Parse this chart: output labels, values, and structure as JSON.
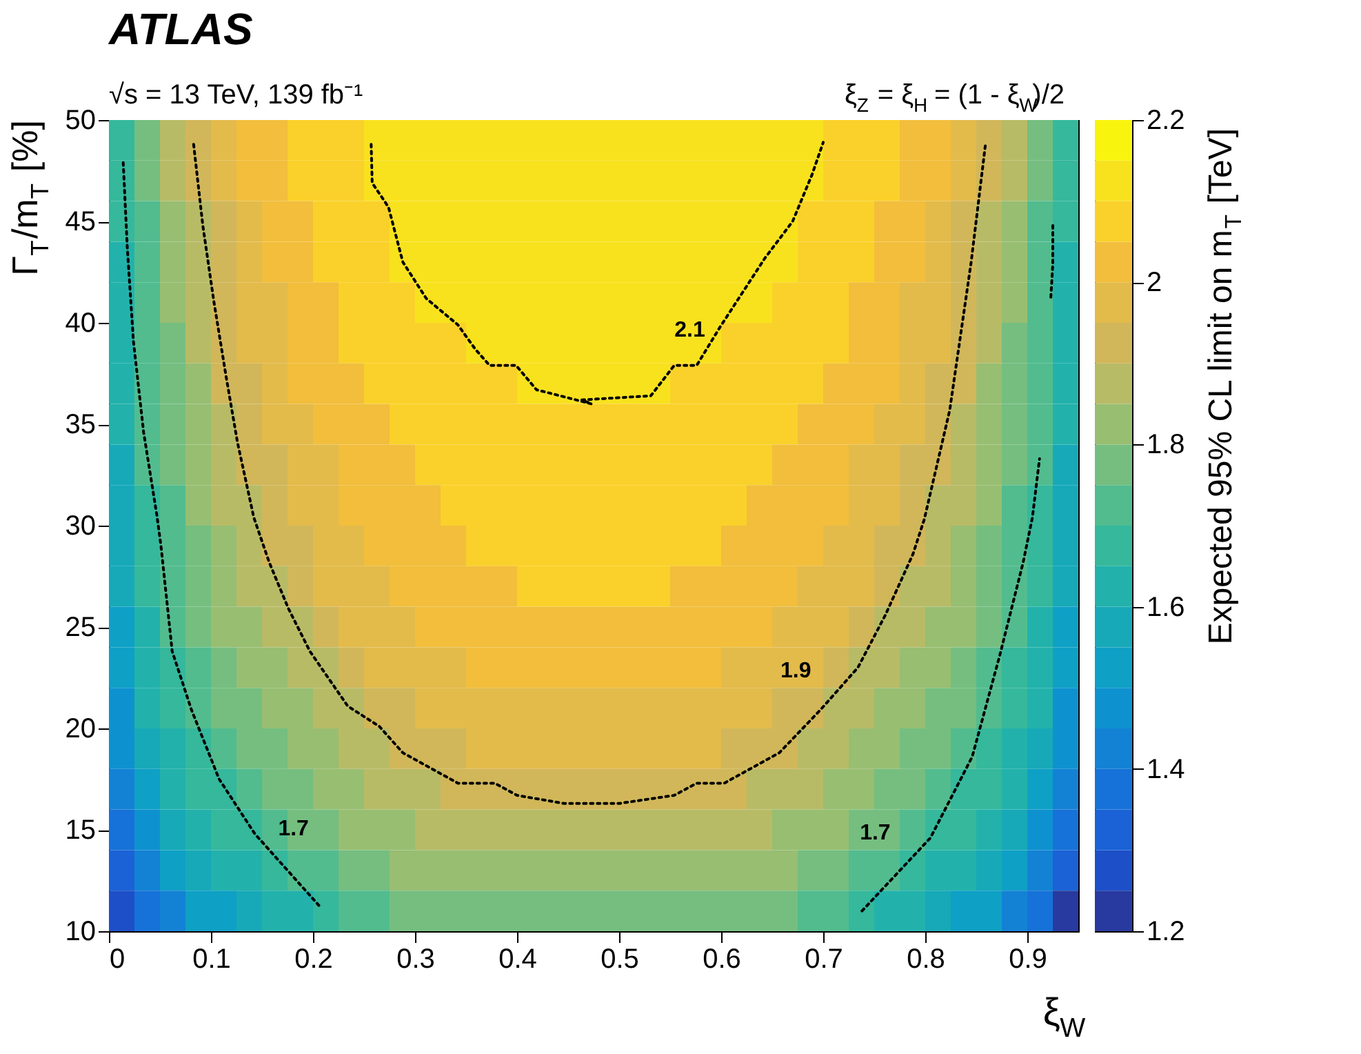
{
  "chart_data": {
    "type": "heatmap",
    "title": "ATLAS",
    "subtitle": "√s = 13 TeV, 139 fb⁻¹",
    "xlabel": "ξ$_{W}$",
    "ylabel": "Γ$_{T}$/m$_{T}$ [%]",
    "clabel": "Expected 95% CL limit on m$_{T}$ [TeV]",
    "annotations": [
      "ξ$_{Z}$ = ξ$_{H}$ = (1 - ξ$_{W}$)/2"
    ],
    "xlim": [
      0,
      0.95
    ],
    "ylim": [
      10,
      50
    ],
    "xticks": [
      0,
      0.1,
      0.2,
      0.3,
      0.4,
      0.5,
      0.6,
      0.7,
      0.8,
      0.9
    ],
    "yticks": [
      10,
      15,
      20,
      25,
      30,
      35,
      40,
      45,
      50
    ],
    "clim": [
      1.2,
      2.2
    ],
    "cticks": [
      1.2,
      1.4,
      1.6,
      1.8,
      2,
      2.2
    ],
    "colors": [
      "#283a9f",
      "#1d4fc8",
      "#1a62d6",
      "#1672d8",
      "#1382d4",
      "#0e92cf",
      "#0fa0c6",
      "#17a9b8",
      "#22b2ab",
      "#35b89c",
      "#52bc8f",
      "#75be80",
      "#98be72",
      "#b8bb66",
      "#d1b75a",
      "#e3bb4b",
      "#f2be3c",
      "#fad12a",
      "#f8e21e",
      "#f9f40e"
    ],
    "x": [
      0.0125,
      0.0375,
      0.0625,
      0.0875,
      0.1125,
      0.1375,
      0.1625,
      0.1875,
      0.2125,
      0.2375,
      0.2625,
      0.2875,
      0.3125,
      0.3375,
      0.3625,
      0.3875,
      0.4125,
      0.4375,
      0.4625,
      0.4875,
      0.5125,
      0.5375,
      0.5625,
      0.5875,
      0.6125,
      0.6375,
      0.6625,
      0.6875,
      0.7125,
      0.7375,
      0.7625,
      0.7875,
      0.8125,
      0.8375,
      0.8625,
      0.8875,
      0.9125,
      0.9375
    ],
    "y": [
      49,
      47,
      45,
      43,
      41,
      39,
      37,
      35,
      33,
      31,
      29,
      27,
      25,
      23,
      21,
      19,
      17,
      15,
      13,
      11
    ],
    "cells": [
      [
        1.675,
        1.775,
        1.875,
        1.925,
        1.975,
        2.025,
        2.025,
        2.075,
        2.075,
        2.075,
        2.125,
        2.125,
        2.125,
        2.125,
        2.125,
        2.125,
        2.125,
        2.125,
        2.125,
        2.125,
        2.125,
        2.125,
        2.125,
        2.125,
        2.125,
        2.125,
        2.125,
        2.125,
        2.075,
        2.075,
        2.075,
        2.025,
        2.025,
        1.975,
        1.925,
        1.875,
        1.775,
        1.675
      ],
      [
        1.675,
        1.775,
        1.875,
        1.925,
        1.975,
        2.025,
        2.025,
        2.075,
        2.075,
        2.075,
        2.125,
        2.125,
        2.125,
        2.125,
        2.125,
        2.125,
        2.125,
        2.125,
        2.125,
        2.125,
        2.125,
        2.125,
        2.125,
        2.125,
        2.125,
        2.125,
        2.125,
        2.125,
        2.075,
        2.075,
        2.075,
        2.025,
        2.025,
        1.975,
        1.925,
        1.875,
        1.775,
        1.675
      ],
      [
        1.675,
        1.725,
        1.825,
        1.875,
        1.925,
        1.975,
        2.025,
        2.025,
        2.075,
        2.075,
        2.075,
        2.125,
        2.125,
        2.125,
        2.125,
        2.125,
        2.125,
        2.125,
        2.125,
        2.125,
        2.125,
        2.125,
        2.125,
        2.125,
        2.125,
        2.125,
        2.125,
        2.075,
        2.075,
        2.075,
        2.025,
        2.025,
        1.975,
        1.925,
        1.875,
        1.825,
        1.725,
        1.675
      ],
      [
        1.625,
        1.725,
        1.825,
        1.875,
        1.925,
        1.975,
        2.025,
        2.025,
        2.075,
        2.075,
        2.075,
        2.125,
        2.125,
        2.125,
        2.125,
        2.125,
        2.125,
        2.125,
        2.125,
        2.125,
        2.125,
        2.125,
        2.125,
        2.125,
        2.125,
        2.125,
        2.125,
        2.075,
        2.075,
        2.075,
        2.025,
        2.025,
        1.975,
        1.925,
        1.875,
        1.825,
        1.725,
        1.625
      ],
      [
        1.625,
        1.725,
        1.825,
        1.875,
        1.925,
        1.975,
        1.975,
        2.025,
        2.025,
        2.075,
        2.075,
        2.075,
        2.125,
        2.125,
        2.125,
        2.125,
        2.125,
        2.125,
        2.125,
        2.125,
        2.125,
        2.125,
        2.125,
        2.125,
        2.125,
        2.125,
        2.075,
        2.075,
        2.075,
        2.025,
        2.025,
        1.975,
        1.975,
        1.925,
        1.875,
        1.825,
        1.725,
        1.625
      ],
      [
        1.625,
        1.725,
        1.775,
        1.875,
        1.925,
        1.975,
        1.975,
        2.025,
        2.025,
        2.075,
        2.075,
        2.075,
        2.075,
        2.075,
        2.125,
        2.125,
        2.125,
        2.125,
        2.125,
        2.125,
        2.125,
        2.125,
        2.125,
        2.125,
        2.075,
        2.075,
        2.075,
        2.075,
        2.075,
        2.025,
        2.025,
        1.975,
        1.975,
        1.925,
        1.875,
        1.775,
        1.725,
        1.625
      ],
      [
        1.625,
        1.725,
        1.775,
        1.825,
        1.925,
        1.925,
        1.975,
        2.025,
        2.025,
        2.025,
        2.075,
        2.075,
        2.075,
        2.075,
        2.075,
        2.075,
        2.125,
        2.125,
        2.125,
        2.125,
        2.125,
        2.125,
        2.075,
        2.075,
        2.075,
        2.075,
        2.075,
        2.075,
        2.025,
        2.025,
        2.025,
        1.975,
        1.925,
        1.925,
        1.825,
        1.775,
        1.725,
        1.625
      ],
      [
        1.625,
        1.725,
        1.775,
        1.825,
        1.875,
        1.925,
        1.975,
        1.975,
        2.025,
        2.025,
        2.025,
        2.075,
        2.075,
        2.075,
        2.075,
        2.075,
        2.075,
        2.075,
        2.075,
        2.075,
        2.075,
        2.075,
        2.075,
        2.075,
        2.075,
        2.075,
        2.075,
        2.025,
        2.025,
        2.025,
        1.975,
        1.975,
        1.925,
        1.875,
        1.825,
        1.775,
        1.725,
        1.625
      ],
      [
        1.575,
        1.725,
        1.775,
        1.825,
        1.875,
        1.925,
        1.925,
        1.975,
        1.975,
        2.025,
        2.025,
        2.025,
        2.075,
        2.075,
        2.075,
        2.075,
        2.075,
        2.075,
        2.075,
        2.075,
        2.075,
        2.075,
        2.075,
        2.075,
        2.075,
        2.075,
        2.025,
        2.025,
        2.025,
        1.975,
        1.975,
        1.925,
        1.925,
        1.875,
        1.825,
        1.775,
        1.725,
        1.575
      ],
      [
        1.575,
        1.675,
        1.725,
        1.825,
        1.875,
        1.875,
        1.925,
        1.975,
        1.975,
        2.025,
        2.025,
        2.025,
        2.025,
        2.075,
        2.075,
        2.075,
        2.075,
        2.075,
        2.075,
        2.075,
        2.075,
        2.075,
        2.075,
        2.075,
        2.075,
        2.025,
        2.025,
        2.025,
        2.025,
        1.975,
        1.975,
        1.925,
        1.875,
        1.875,
        1.825,
        1.725,
        1.675,
        1.575
      ],
      [
        1.575,
        1.675,
        1.725,
        1.775,
        1.825,
        1.875,
        1.925,
        1.925,
        1.975,
        1.975,
        2.025,
        2.025,
        2.025,
        2.025,
        2.075,
        2.075,
        2.075,
        2.075,
        2.075,
        2.075,
        2.075,
        2.075,
        2.075,
        2.075,
        2.025,
        2.025,
        2.025,
        2.025,
        1.975,
        1.975,
        1.925,
        1.925,
        1.875,
        1.825,
        1.775,
        1.725,
        1.675,
        1.575
      ],
      [
        1.575,
        1.675,
        1.725,
        1.775,
        1.825,
        1.875,
        1.875,
        1.925,
        1.975,
        1.975,
        1.975,
        2.025,
        2.025,
        2.025,
        2.025,
        2.025,
        2.075,
        2.075,
        2.075,
        2.075,
        2.075,
        2.075,
        2.025,
        2.025,
        2.025,
        2.025,
        2.025,
        1.975,
        1.975,
        1.975,
        1.925,
        1.875,
        1.875,
        1.825,
        1.775,
        1.725,
        1.675,
        1.575
      ],
      [
        1.525,
        1.625,
        1.725,
        1.775,
        1.825,
        1.825,
        1.875,
        1.875,
        1.925,
        1.975,
        1.975,
        1.975,
        2.025,
        2.025,
        2.025,
        2.025,
        2.025,
        2.025,
        2.025,
        2.025,
        2.025,
        2.025,
        2.025,
        2.025,
        2.025,
        2.025,
        1.975,
        1.975,
        1.975,
        1.925,
        1.875,
        1.875,
        1.825,
        1.825,
        1.775,
        1.725,
        1.625,
        1.525
      ],
      [
        1.525,
        1.625,
        1.675,
        1.725,
        1.775,
        1.825,
        1.825,
        1.875,
        1.875,
        1.925,
        1.975,
        1.975,
        1.975,
        1.975,
        2.025,
        2.025,
        2.025,
        2.025,
        2.025,
        2.025,
        2.025,
        2.025,
        2.025,
        2.025,
        1.975,
        1.975,
        1.975,
        1.975,
        1.925,
        1.875,
        1.875,
        1.825,
        1.825,
        1.775,
        1.725,
        1.675,
        1.625,
        1.525
      ],
      [
        1.475,
        1.625,
        1.675,
        1.725,
        1.775,
        1.775,
        1.825,
        1.825,
        1.875,
        1.875,
        1.925,
        1.925,
        1.975,
        1.975,
        1.975,
        1.975,
        1.975,
        1.975,
        1.975,
        1.975,
        1.975,
        1.975,
        1.975,
        1.975,
        1.975,
        1.975,
        1.925,
        1.925,
        1.875,
        1.875,
        1.825,
        1.825,
        1.775,
        1.775,
        1.725,
        1.675,
        1.625,
        1.475
      ],
      [
        1.475,
        1.575,
        1.625,
        1.675,
        1.725,
        1.775,
        1.775,
        1.825,
        1.825,
        1.875,
        1.875,
        1.925,
        1.925,
        1.925,
        1.975,
        1.975,
        1.975,
        1.975,
        1.975,
        1.975,
        1.975,
        1.975,
        1.975,
        1.975,
        1.925,
        1.925,
        1.925,
        1.875,
        1.875,
        1.825,
        1.825,
        1.775,
        1.775,
        1.725,
        1.675,
        1.625,
        1.575,
        1.475
      ],
      [
        1.425,
        1.525,
        1.625,
        1.675,
        1.675,
        1.725,
        1.775,
        1.775,
        1.825,
        1.825,
        1.875,
        1.875,
        1.875,
        1.925,
        1.925,
        1.925,
        1.925,
        1.925,
        1.925,
        1.925,
        1.925,
        1.925,
        1.925,
        1.925,
        1.925,
        1.875,
        1.875,
        1.875,
        1.825,
        1.825,
        1.775,
        1.775,
        1.725,
        1.675,
        1.675,
        1.625,
        1.525,
        1.425
      ],
      [
        1.375,
        1.475,
        1.575,
        1.625,
        1.675,
        1.675,
        1.725,
        1.775,
        1.775,
        1.825,
        1.825,
        1.825,
        1.875,
        1.875,
        1.875,
        1.875,
        1.875,
        1.875,
        1.875,
        1.875,
        1.875,
        1.875,
        1.875,
        1.875,
        1.875,
        1.875,
        1.825,
        1.825,
        1.825,
        1.775,
        1.775,
        1.725,
        1.675,
        1.675,
        1.625,
        1.575,
        1.475,
        1.375
      ],
      [
        1.325,
        1.425,
        1.525,
        1.575,
        1.625,
        1.625,
        1.675,
        1.725,
        1.725,
        1.775,
        1.775,
        1.825,
        1.825,
        1.825,
        1.825,
        1.825,
        1.825,
        1.825,
        1.825,
        1.825,
        1.825,
        1.825,
        1.825,
        1.825,
        1.825,
        1.825,
        1.825,
        1.775,
        1.775,
        1.725,
        1.725,
        1.675,
        1.625,
        1.625,
        1.575,
        1.525,
        1.425,
        1.325
      ],
      [
        1.275,
        1.375,
        1.425,
        1.525,
        1.525,
        1.575,
        1.625,
        1.625,
        1.675,
        1.725,
        1.725,
        1.775,
        1.775,
        1.775,
        1.775,
        1.775,
        1.775,
        1.775,
        1.775,
        1.775,
        1.775,
        1.775,
        1.775,
        1.775,
        1.775,
        1.775,
        1.775,
        1.725,
        1.725,
        1.675,
        1.625,
        1.625,
        1.575,
        1.525,
        1.525,
        1.425,
        1.375,
        1.225
      ]
    ],
    "line_style": "dotted",
    "series": [
      {
        "type": "line",
        "name": "2.1",
        "color": "#000000",
        "x": [
          0.257,
          0.258,
          0.274,
          0.288,
          0.311,
          0.342,
          0.359,
          0.373,
          0.399,
          0.419,
          0.45,
          0.473,
          0.4635,
          0.531,
          0.554,
          0.576,
          0.599,
          0.643,
          0.67,
          0.689,
          0.7
        ],
        "values": [
          48.8,
          46.9,
          45.7,
          43,
          41.2,
          39.9,
          38.7,
          37.9,
          37.9,
          36.7,
          36.3,
          36,
          36.2,
          36.4,
          37.9,
          37.9,
          39.8,
          43.2,
          45,
          47.3,
          48.9
        ]
      },
      {
        "type": "line",
        "name": "1.9",
        "color": "#000000",
        "x": [
          0.083,
          0.092,
          0.103,
          0.115,
          0.126,
          0.142,
          0.157,
          0.176,
          0.197,
          0.234,
          0.265,
          0.288,
          0.342,
          0.378,
          0.4,
          0.446,
          0.468,
          0.5,
          0.554,
          0.576,
          0.603,
          0.657,
          0.697,
          0.734,
          0.761,
          0.788,
          0.799,
          0.824,
          0.845,
          0.859
        ],
        "values": [
          48.8,
          44.8,
          41,
          37.3,
          34.1,
          30.4,
          28.2,
          25.9,
          23.8,
          21.1,
          20.1,
          18.8,
          17.3,
          17.3,
          16.7,
          16.3,
          16.3,
          16.3,
          16.7,
          17.3,
          17.3,
          18.8,
          20.9,
          23,
          25.6,
          28.6,
          30.3,
          35.7,
          43,
          48.8
        ]
      },
      {
        "type": "line",
        "name": "1.7",
        "color": "#000000",
        "x": [
          0.014,
          0.018,
          0.024,
          0.034,
          0.047,
          0.051,
          0.062,
          0.081,
          0.108,
          0.143,
          0.207
        ],
        "values": [
          47.9,
          43.7,
          39.1,
          34.6,
          30.5,
          29,
          23.8,
          20.9,
          17.5,
          14.8,
          11.2
        ]
      },
      {
        "type": "line",
        "name": "1.7",
        "color": "#000000",
        "x": [
          0.738,
          0.805,
          0.846,
          0.873,
          0.896,
          0.905,
          0.912
        ],
        "values": [
          11,
          14.6,
          18.6,
          23.6,
          28.2,
          30.4,
          33.3
        ]
      },
      {
        "type": "line",
        "color": "#000000",
        "x": [
          0.925,
          0.925,
          0.923
        ],
        "values": [
          44.8,
          42.9,
          41.2
        ]
      }
    ]
  }
}
